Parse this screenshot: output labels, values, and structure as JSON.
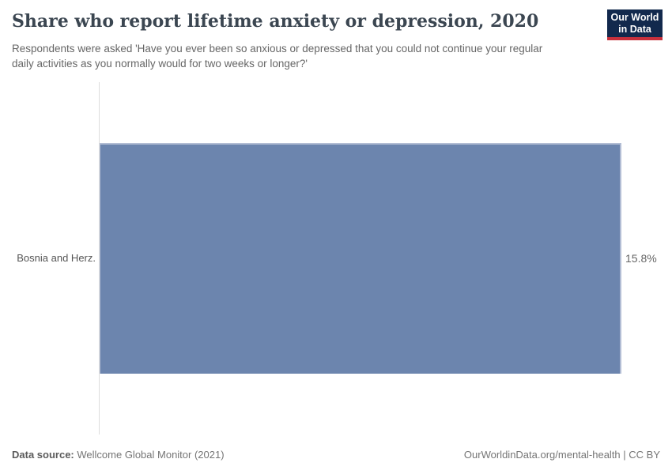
{
  "header": {
    "title": "Share who report lifetime anxiety or depression, 2020",
    "subtitle": "Respondents were asked 'Have you ever been so anxious or depressed that you could not continue your regular daily activities as you normally would for two weeks or longer?'"
  },
  "logo": {
    "line1": "Our World",
    "line2": "in Data"
  },
  "chart_data": {
    "type": "bar",
    "orientation": "horizontal",
    "title": "Share who report lifetime anxiety or depression, 2020",
    "categories": [
      "Bosnia and Herz."
    ],
    "values": [
      15.8
    ],
    "value_labels": [
      "15.8%"
    ],
    "unit": "%",
    "xlim": [
      0,
      15.8
    ],
    "grid": false,
    "legend": false
  },
  "footer": {
    "datasource_label": "Data source:",
    "datasource_value": "Wellcome Global Monitor (2021)",
    "link": "OurWorldinData.org/mental-health | CC BY"
  },
  "colors": {
    "bar": "#6c85ae",
    "bar_edge": "#b2bdd4",
    "logo_navy": "#12294d",
    "logo_red": "#c9303c",
    "axis_line": "#dddddd",
    "title_text": "#3b4651",
    "subtitle_text": "#666666",
    "footer_text": "#757575"
  }
}
